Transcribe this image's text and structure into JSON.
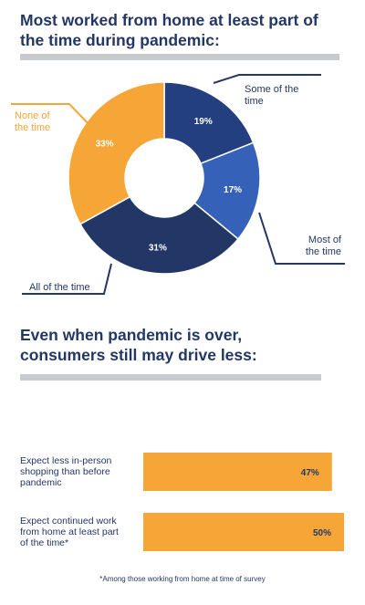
{
  "donut": {
    "title_line1": "Most worked from home at least part of",
    "title_line2": "the time during pandemic:"
  },
  "bars_section": {
    "title_line1": "Even when pandemic is over,",
    "title_line2": "consumers still may drive less:"
  },
  "footnote": "*Among those working from home at time of survey",
  "colors": {
    "navy": "#233766",
    "blue": "#31579f",
    "orange": "#f5a637",
    "gray": "#c7cbce"
  },
  "chart_data": [
    {
      "type": "pie",
      "donut": true,
      "slices": [
        {
          "label": "Some of the time",
          "value": 19,
          "display": "19%",
          "color": "#233f80"
        },
        {
          "label": "Most of the time",
          "value": 17,
          "display": "17%",
          "color": "#3561b9"
        },
        {
          "label": "All of the time",
          "value": 31,
          "display": "31%",
          "color": "#233766"
        },
        {
          "label": "None of the time",
          "value": 33,
          "display": "33%",
          "color": "#f5a637"
        }
      ]
    },
    {
      "type": "bar",
      "orientation": "horizontal",
      "categories": [
        [
          "Expect less in-person",
          "shopping than before",
          "pandemic"
        ],
        [
          "Expect continued work",
          "from home at least part",
          "of the time*"
        ]
      ],
      "values": [
        47,
        50
      ],
      "labels": [
        "47%",
        "50%"
      ],
      "color": "#f5a637"
    }
  ]
}
